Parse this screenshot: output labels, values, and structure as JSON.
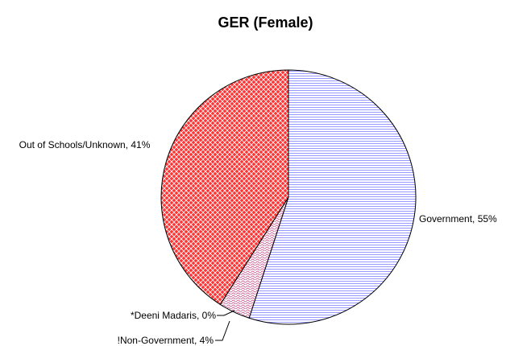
{
  "chart_data": {
    "type": "pie",
    "title": "GER (Female)",
    "values": [
      55,
      4,
      0,
      41
    ],
    "value_labels": [
      "Government, 55%",
      "!Non-Government, 4%",
      "*Deeni Madaris, 0%",
      "Out of Schools/Unknown, 41%"
    ],
    "colors": [
      "#9999ff",
      "#cc6699",
      "#ffffff",
      "#ff3333"
    ]
  }
}
